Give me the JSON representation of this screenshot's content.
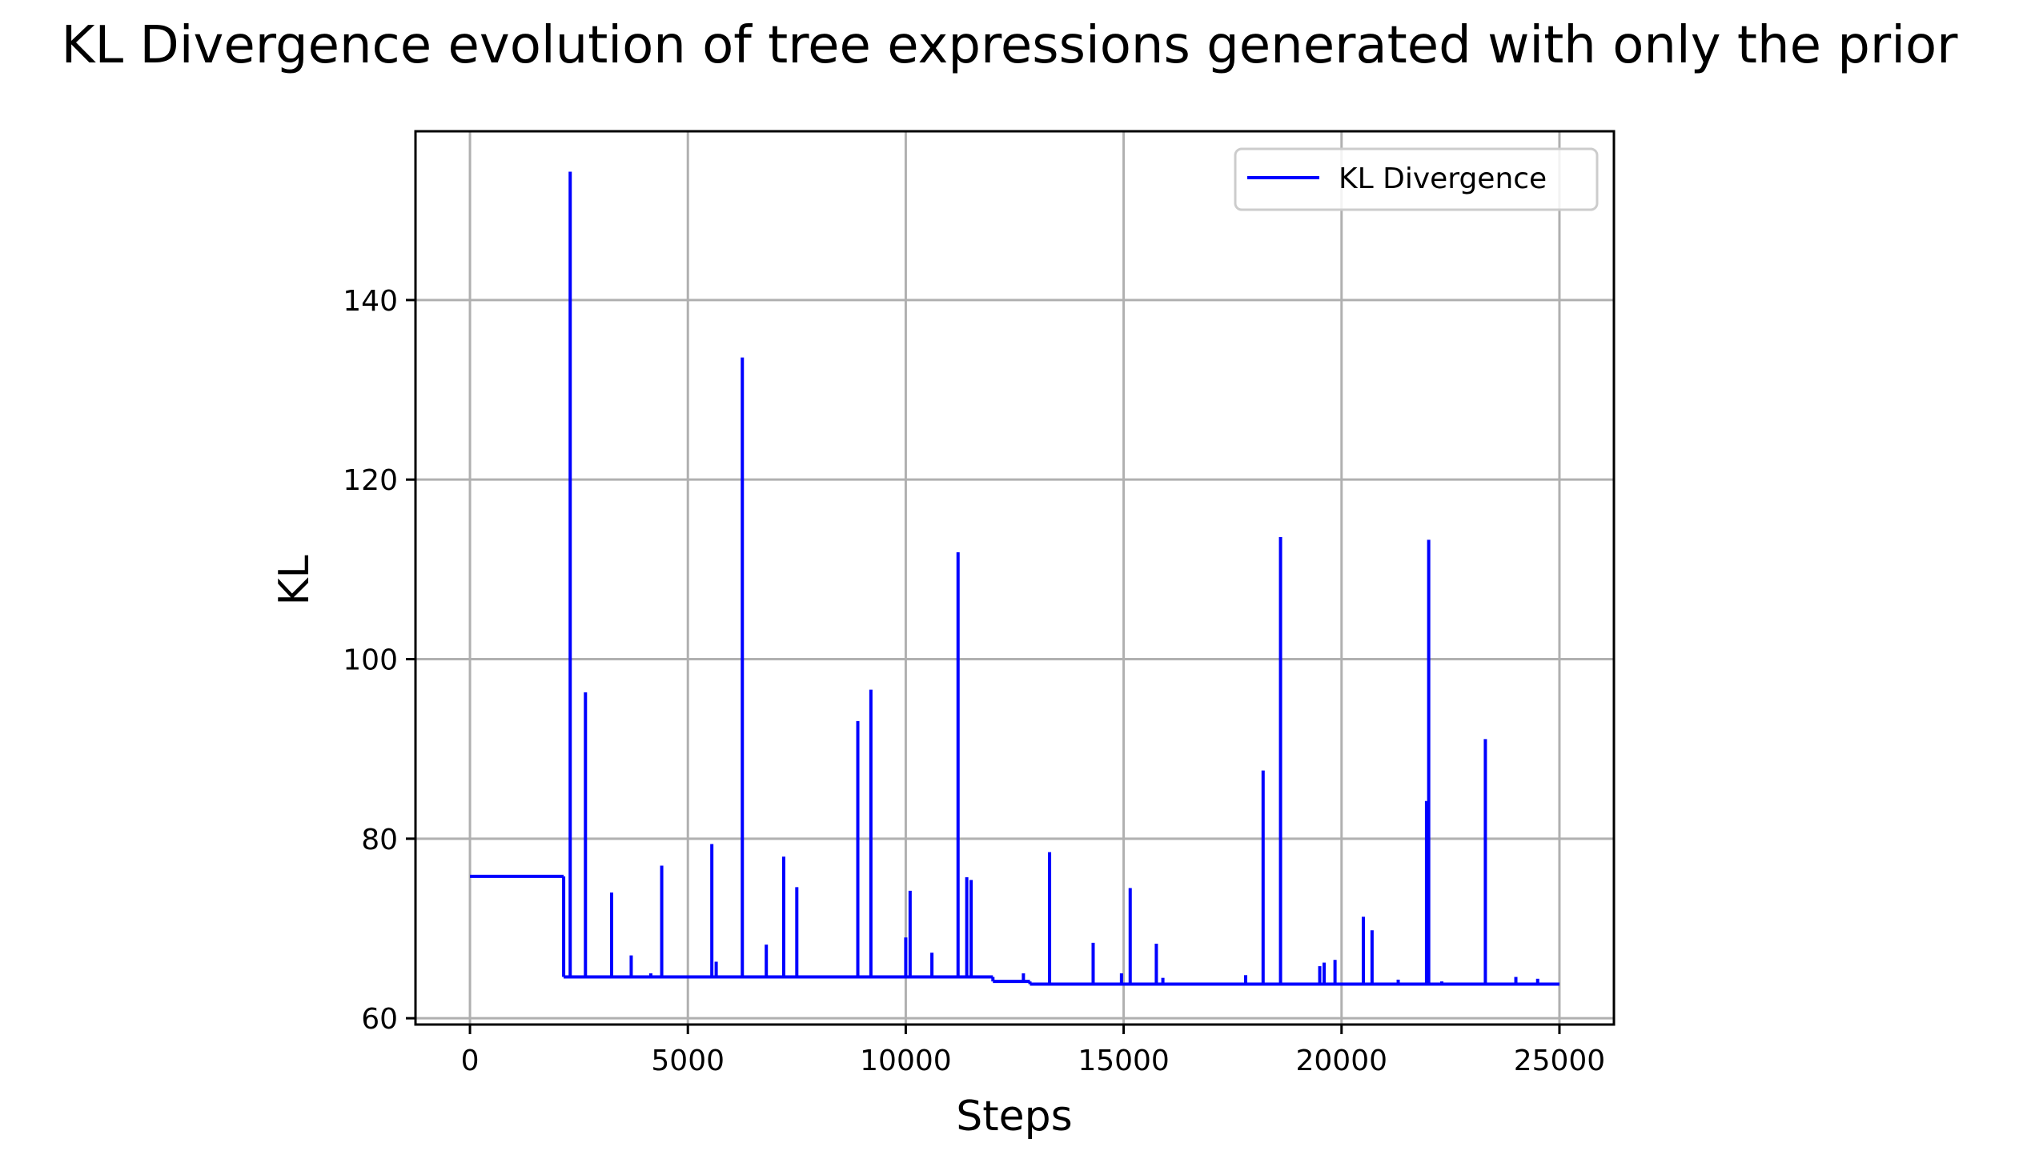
{
  "chart_data": {
    "type": "line",
    "title": "KL Divergence evolution of tree expressions generated with only the prior",
    "xlabel": "Steps",
    "ylabel": "KL",
    "xlim": [
      -1250,
      26250
    ],
    "ylim": [
      59.3,
      158.8
    ],
    "xticks": [
      0,
      5000,
      10000,
      15000,
      20000,
      25000
    ],
    "yticks": [
      60,
      80,
      100,
      120,
      140
    ],
    "grid": true,
    "legend": {
      "position": "top-right",
      "entries": [
        "KL Divergence"
      ]
    },
    "series": [
      {
        "name": "KL Divergence",
        "color": "#0000ff",
        "baseline": [
          {
            "x": [
              0,
              2150
            ],
            "y": 75.8
          },
          {
            "x": [
              2150,
              12000
            ],
            "y": 64.6
          },
          {
            "x": [
              12000,
              12850
            ],
            "y": 64.1
          },
          {
            "x": [
              12850,
              25000
            ],
            "y": 63.8
          }
        ],
        "spikes": [
          [
            2300,
            154.3
          ],
          [
            2650,
            96.3
          ],
          [
            3250,
            74.0
          ],
          [
            3700,
            67.0
          ],
          [
            4150,
            65.0
          ],
          [
            4400,
            77.0
          ],
          [
            5550,
            79.4
          ],
          [
            5650,
            66.3
          ],
          [
            6250,
            133.6
          ],
          [
            6800,
            68.2
          ],
          [
            7200,
            78.0
          ],
          [
            7500,
            74.6
          ],
          [
            8900,
            93.1
          ],
          [
            9200,
            96.6
          ],
          [
            10000,
            69.0
          ],
          [
            10100,
            74.2
          ],
          [
            10600,
            67.3
          ],
          [
            11200,
            111.9
          ],
          [
            11400,
            75.7
          ],
          [
            11500,
            75.4
          ],
          [
            12700,
            65.0
          ],
          [
            13300,
            78.5
          ],
          [
            14300,
            68.4
          ],
          [
            14950,
            65.0
          ],
          [
            15150,
            74.5
          ],
          [
            15750,
            68.3
          ],
          [
            15900,
            64.5
          ],
          [
            17800,
            64.8
          ],
          [
            18200,
            87.6
          ],
          [
            18600,
            113.6
          ],
          [
            19500,
            65.8
          ],
          [
            19600,
            66.2
          ],
          [
            19850,
            66.5
          ],
          [
            20500,
            71.3
          ],
          [
            20700,
            69.8
          ],
          [
            21300,
            64.3
          ],
          [
            21950,
            84.2
          ],
          [
            22000,
            113.3
          ],
          [
            22300,
            64.1
          ],
          [
            23300,
            91.1
          ],
          [
            24000,
            64.6
          ],
          [
            24500,
            64.4
          ]
        ]
      }
    ]
  }
}
